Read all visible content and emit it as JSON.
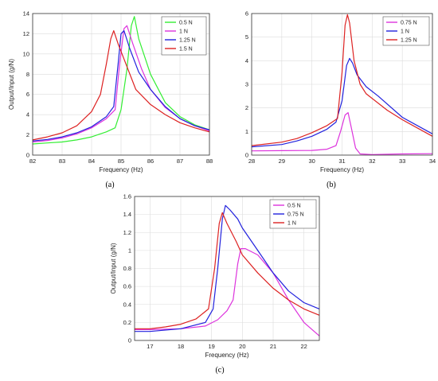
{
  "figure": {
    "captions": [
      "(a)",
      "(b)",
      "(c)"
    ]
  },
  "chart_data": [
    {
      "type": "line",
      "caption": "(a)",
      "xlabel": "Frequency (Hz)",
      "ylabel": "Output/Input (g/N)",
      "xlim": [
        82,
        88
      ],
      "ylim": [
        0,
        14
      ],
      "xticks": [
        82,
        83,
        84,
        85,
        86,
        87,
        88
      ],
      "yticks": [
        0,
        2,
        4,
        6,
        8,
        10,
        12,
        14
      ],
      "grid": true,
      "legend_position": "top-right",
      "series": [
        {
          "name": "0.5 N",
          "color": "#33ee33",
          "x": [
            82,
            82.5,
            83,
            83.5,
            84,
            84.5,
            84.8,
            85.0,
            85.2,
            85.35,
            85.45,
            85.6,
            86.0,
            86.5,
            87,
            87.5,
            88
          ],
          "y": [
            1.1,
            1.2,
            1.3,
            1.5,
            1.8,
            2.3,
            2.7,
            4.5,
            8.5,
            12.8,
            13.7,
            11.5,
            8.0,
            5.2,
            3.8,
            3.0,
            2.5
          ]
        },
        {
          "name": "1 N",
          "color": "#dd33dd",
          "x": [
            82,
            82.5,
            83,
            83.5,
            84,
            84.5,
            84.8,
            84.95,
            85.1,
            85.2,
            85.4,
            85.7,
            86.0,
            86.5,
            87,
            87.5,
            88
          ],
          "y": [
            1.3,
            1.45,
            1.7,
            2.1,
            2.7,
            3.6,
            4.5,
            9.0,
            12.5,
            12.8,
            11.0,
            8.5,
            6.5,
            4.7,
            3.6,
            2.9,
            2.4
          ]
        },
        {
          "name": "1.25 N",
          "color": "#2222dd",
          "x": [
            82,
            82.5,
            83,
            83.5,
            84,
            84.5,
            84.75,
            84.9,
            85.0,
            85.1,
            85.3,
            85.6,
            86.0,
            86.5,
            87,
            87.5,
            88
          ],
          "y": [
            1.4,
            1.55,
            1.8,
            2.2,
            2.8,
            3.8,
            4.8,
            9.0,
            12.0,
            12.3,
            10.5,
            8.2,
            6.5,
            4.8,
            3.6,
            2.9,
            2.5
          ]
        },
        {
          "name": "1.5 N",
          "color": "#dd2222",
          "x": [
            82,
            82.5,
            83,
            83.5,
            84,
            84.3,
            84.5,
            84.65,
            84.75,
            84.9,
            85.1,
            85.5,
            86.0,
            86.5,
            87,
            87.5,
            88
          ],
          "y": [
            1.5,
            1.8,
            2.2,
            2.9,
            4.3,
            6.0,
            9.0,
            11.5,
            12.3,
            11.0,
            9.5,
            6.5,
            5.0,
            4.0,
            3.2,
            2.7,
            2.3
          ]
        }
      ]
    },
    {
      "type": "line",
      "caption": "(b)",
      "xlabel": "Frequency (Hz)",
      "ylabel": "",
      "xlim": [
        28,
        34
      ],
      "ylim": [
        0,
        6
      ],
      "xticks": [
        28,
        29,
        30,
        31,
        32,
        33,
        34
      ],
      "yticks": [
        0,
        1,
        2,
        3,
        4,
        5,
        6
      ],
      "grid": true,
      "legend_position": "top-right",
      "series": [
        {
          "name": "0.75 N",
          "color": "#dd33dd",
          "x": [
            28,
            29,
            30,
            30.5,
            30.8,
            30.95,
            31.1,
            31.2,
            31.3,
            31.45,
            31.6,
            32,
            33,
            34
          ],
          "y": [
            0.18,
            0.19,
            0.2,
            0.25,
            0.4,
            1.0,
            1.7,
            1.8,
            1.2,
            0.3,
            0.05,
            0.02,
            0.05,
            0.06
          ]
        },
        {
          "name": "1 N",
          "color": "#2222dd",
          "x": [
            28,
            29,
            29.5,
            30,
            30.5,
            30.8,
            31.0,
            31.15,
            31.25,
            31.35,
            31.5,
            31.8,
            32.2,
            33,
            34
          ],
          "y": [
            0.35,
            0.45,
            0.6,
            0.8,
            1.1,
            1.4,
            2.3,
            3.8,
            4.1,
            3.9,
            3.4,
            2.9,
            2.5,
            1.6,
            0.9
          ]
        },
        {
          "name": "1.25 N",
          "color": "#dd2222",
          "x": [
            28,
            29,
            29.5,
            30,
            30.5,
            30.85,
            31.0,
            31.1,
            31.18,
            31.25,
            31.4,
            31.6,
            31.8,
            32.5,
            33,
            34
          ],
          "y": [
            0.4,
            0.55,
            0.7,
            0.95,
            1.25,
            1.55,
            3.5,
            5.5,
            5.95,
            5.6,
            4.0,
            3.0,
            2.6,
            1.9,
            1.5,
            0.8
          ]
        }
      ]
    },
    {
      "type": "line",
      "caption": "(c)",
      "xlabel": "Frequency (Hz)",
      "ylabel": "Output/Input (g/N)",
      "xlim": [
        16.5,
        22.5
      ],
      "ylim": [
        0,
        1.6
      ],
      "xticks": [
        17,
        18,
        19,
        20,
        21,
        22
      ],
      "yticks": [
        0,
        0.2,
        0.4,
        0.6,
        0.8,
        1,
        1.2,
        1.4,
        1.6
      ],
      "grid": true,
      "legend_position": "top-right",
      "series": [
        {
          "name": "0.5 N",
          "color": "#dd33dd",
          "x": [
            16.5,
            17,
            18,
            18.8,
            19.2,
            19.5,
            19.7,
            19.85,
            19.95,
            20.1,
            20.5,
            21,
            21.5,
            22,
            22.5
          ],
          "y": [
            0.12,
            0.12,
            0.13,
            0.16,
            0.23,
            0.33,
            0.45,
            0.85,
            1.02,
            1.02,
            0.95,
            0.75,
            0.45,
            0.2,
            0.05
          ]
        },
        {
          "name": "0.75 N",
          "color": "#2222dd",
          "x": [
            16.5,
            17,
            18,
            18.8,
            19.05,
            19.2,
            19.35,
            19.45,
            19.6,
            19.85,
            20.0,
            20.5,
            21,
            21.5,
            22,
            22.5
          ],
          "y": [
            0.1,
            0.1,
            0.13,
            0.2,
            0.35,
            0.8,
            1.35,
            1.5,
            1.45,
            1.35,
            1.25,
            1.0,
            0.75,
            0.55,
            0.42,
            0.35
          ]
        },
        {
          "name": "1 N",
          "color": "#dd2222",
          "x": [
            16.5,
            17,
            17.5,
            18,
            18.5,
            18.9,
            19.1,
            19.25,
            19.35,
            19.5,
            19.8,
            20.0,
            20.5,
            21,
            21.5,
            22,
            22.5
          ],
          "y": [
            0.13,
            0.13,
            0.15,
            0.18,
            0.24,
            0.35,
            0.8,
            1.3,
            1.42,
            1.3,
            1.1,
            0.95,
            0.75,
            0.58,
            0.45,
            0.35,
            0.28
          ]
        }
      ]
    }
  ]
}
